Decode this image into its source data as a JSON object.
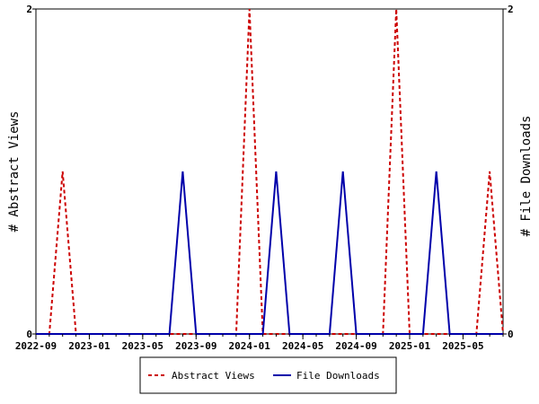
{
  "chart_data": {
    "type": "line",
    "x_dates": [
      "2022-09",
      "2022-10",
      "2022-11",
      "2022-12",
      "2023-01",
      "2023-02",
      "2023-03",
      "2023-04",
      "2023-05",
      "2023-06",
      "2023-07",
      "2023-08",
      "2023-09",
      "2023-10",
      "2023-11",
      "2023-12",
      "2024-01",
      "2024-02",
      "2024-03",
      "2024-04",
      "2024-05",
      "2024-06",
      "2024-07",
      "2024-08",
      "2024-09",
      "2024-10",
      "2024-11",
      "2024-12",
      "2025-01",
      "2025-02",
      "2025-03",
      "2025-04",
      "2025-05",
      "2025-06",
      "2025-07",
      "2025-08"
    ],
    "series": [
      {
        "name": "Abstract Views",
        "color": "#cc0000",
        "dash": true,
        "values": [
          0,
          0,
          1,
          0,
          0,
          0,
          0,
          0,
          0,
          0,
          0,
          0,
          0,
          0,
          0,
          0,
          2,
          0,
          0,
          0,
          0,
          0,
          0,
          0,
          0,
          0,
          0,
          2,
          0,
          0,
          0,
          0,
          0,
          0,
          1,
          0
        ]
      },
      {
        "name": "File Downloads",
        "color": "#0000aa",
        "dash": false,
        "values": [
          0,
          0,
          0,
          0,
          0,
          0,
          0,
          0,
          0,
          0,
          0,
          1,
          0,
          0,
          0,
          0,
          0,
          0,
          1,
          0,
          0,
          0,
          0,
          1,
          0,
          0,
          0,
          0,
          0,
          0,
          1,
          0,
          0,
          0,
          0,
          0
        ]
      }
    ],
    "x_tick_labels": [
      "2022-09",
      "2023-01",
      "2023-05",
      "2023-09",
      "2024-01",
      "2024-05",
      "2024-09",
      "2025-01",
      "2025-05"
    ],
    "y_left_label": "# Abstract Views",
    "y_right_label": "# File Downloads",
    "y_left_ticks": [
      "0",
      "2"
    ],
    "y_right_ticks": [
      "0",
      "2"
    ],
    "ylim": [
      0,
      2
    ],
    "legend_position": "bottom"
  }
}
